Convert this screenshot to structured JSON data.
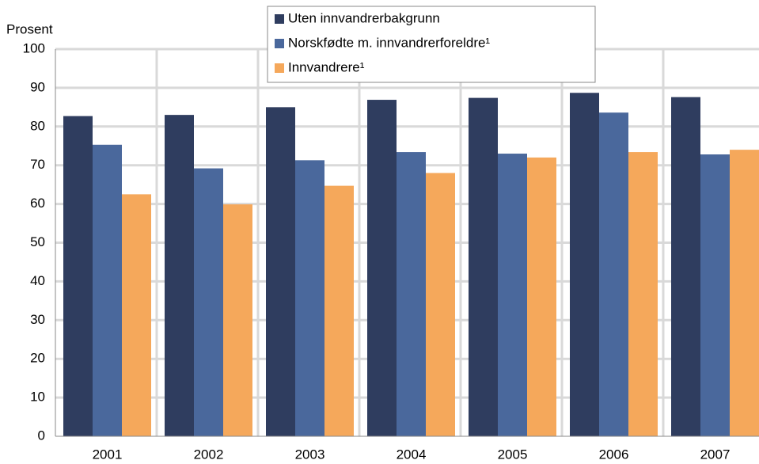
{
  "chart_data": {
    "type": "bar",
    "y_label": "Prosent",
    "categories": [
      "2001",
      "2002",
      "2003",
      "2004",
      "2005",
      "2006",
      "2007"
    ],
    "series": [
      {
        "name": "Uten innvandrerbakgrunn",
        "color": "#2f3d5f",
        "values": [
          82.7,
          83,
          85,
          86.9,
          87.4,
          88.7,
          87.6
        ]
      },
      {
        "name": "Norskfødte m. innvandrerforeldre¹",
        "color": "#4a689c",
        "values": [
          75.3,
          69.2,
          71.3,
          73.4,
          73,
          83.6,
          72.8
        ]
      },
      {
        "name": "Innvandrere¹",
        "color": "#f5a85b",
        "values": [
          62.5,
          59.9,
          64.7,
          68,
          72,
          73.4,
          74
        ]
      }
    ],
    "ylim": [
      0,
      100
    ],
    "yticks": [
      0,
      10,
      20,
      30,
      40,
      50,
      60,
      70,
      80,
      90,
      100
    ],
    "grid": true
  }
}
